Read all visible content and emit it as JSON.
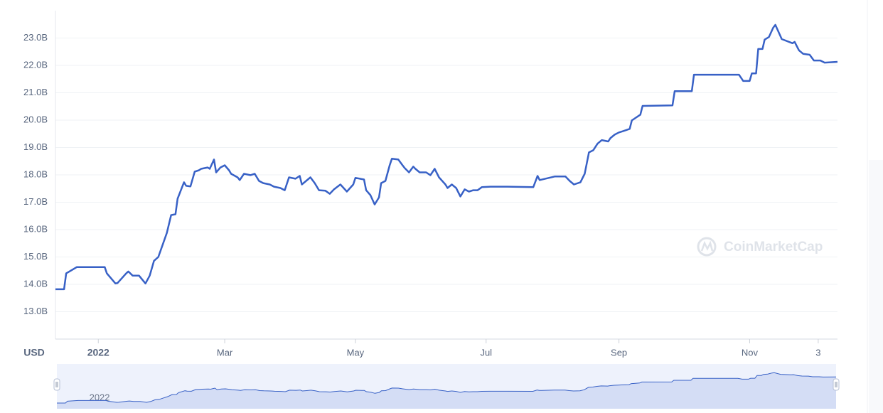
{
  "chart_data": {
    "type": "line",
    "currency": "USD",
    "watermark": "CoinMarketCap",
    "color": "#3861c6",
    "x": [
      -20,
      -16,
      -15,
      -10,
      3,
      4,
      8,
      9,
      13,
      14,
      16,
      19,
      22,
      24,
      26,
      28,
      30,
      32,
      34,
      36,
      37,
      40,
      41,
      43,
      45,
      47,
      48,
      51,
      52,
      54,
      55,
      57,
      59,
      61,
      62,
      65,
      66,
      68,
      71,
      73,
      75,
      77,
      80,
      82,
      85,
      87,
      89,
      92,
      94,
      95,
      97,
      99,
      101,
      103,
      106,
      108,
      110,
      113,
      116,
      119,
      120,
      124,
      125,
      127,
      129,
      131,
      132,
      134,
      136,
      137,
      140,
      142,
      143,
      145,
      147,
      148,
      150,
      153,
      155,
      157,
      159,
      162,
      163,
      165,
      167,
      169,
      171,
      173,
      175,
      177,
      179,
      183,
      191,
      203,
      205,
      206,
      213,
      218,
      220,
      222,
      225,
      227,
      229,
      231,
      233,
      235,
      238,
      239,
      241,
      243,
      245,
      248,
      249,
      253,
      254,
      268,
      269,
      277,
      278,
      299,
      301,
      304,
      305,
      307,
      308,
      310,
      311,
      313,
      315,
      316,
      319,
      324,
      325,
      327,
      329,
      332,
      334,
      337,
      339,
      345
    ],
    "values": [
      13.82,
      13.82,
      14.4,
      14.63,
      14.63,
      14.4,
      14.03,
      14.05,
      14.4,
      14.47,
      14.32,
      14.32,
      14.03,
      14.32,
      14.86,
      15.0,
      15.44,
      15.88,
      16.53,
      16.56,
      17.13,
      17.73,
      17.6,
      17.58,
      18.12,
      18.17,
      18.22,
      18.27,
      18.22,
      18.56,
      18.09,
      18.27,
      18.35,
      18.17,
      18.04,
      17.91,
      17.81,
      18.04,
      17.99,
      18.04,
      17.78,
      17.7,
      17.65,
      17.57,
      17.52,
      17.44,
      17.91,
      17.86,
      17.96,
      17.65,
      17.78,
      17.91,
      17.7,
      17.44,
      17.42,
      17.31,
      17.47,
      17.65,
      17.39,
      17.65,
      17.89,
      17.83,
      17.44,
      17.26,
      16.92,
      17.18,
      17.7,
      17.78,
      18.35,
      18.59,
      18.56,
      18.35,
      18.25,
      18.09,
      18.3,
      18.22,
      18.09,
      18.09,
      17.99,
      18.22,
      17.91,
      17.65,
      17.52,
      17.65,
      17.52,
      17.21,
      17.47,
      17.39,
      17.44,
      17.44,
      17.55,
      17.57,
      17.57,
      17.55,
      17.96,
      17.81,
      17.94,
      17.94,
      17.78,
      17.65,
      17.73,
      18.04,
      18.82,
      18.9,
      19.14,
      19.27,
      19.22,
      19.34,
      19.47,
      19.55,
      19.6,
      19.68,
      19.99,
      20.2,
      20.52,
      20.54,
      21.06,
      21.06,
      21.66,
      21.66,
      21.43,
      21.43,
      21.71,
      21.71,
      22.6,
      22.6,
      22.94,
      23.04,
      23.38,
      23.48,
      22.96,
      22.81,
      22.86,
      22.55,
      22.42,
      22.39,
      22.18,
      22.18,
      22.1,
      22.13
    ],
    "xlim": [
      -20,
      345
    ],
    "xticks": [
      {
        "value": 0,
        "label": "2022"
      },
      {
        "value": 59,
        "label": "Mar"
      },
      {
        "value": 120,
        "label": "May"
      },
      {
        "value": 181,
        "label": "Jul"
      },
      {
        "value": 243,
        "label": "Sep"
      },
      {
        "value": 304,
        "label": "Nov"
      },
      {
        "value": 336,
        "label": "3"
      }
    ],
    "ylim": [
      12,
      24
    ],
    "yticks": [
      {
        "value": 13,
        "label": "13.0B"
      },
      {
        "value": 14,
        "label": "14.0B"
      },
      {
        "value": 15,
        "label": "15.0B"
      },
      {
        "value": 16,
        "label": "16.0B"
      },
      {
        "value": 17,
        "label": "17.0B"
      },
      {
        "value": 18,
        "label": "18.0B"
      },
      {
        "value": 19,
        "label": "19.0B"
      },
      {
        "value": 20,
        "label": "20.0B"
      },
      {
        "value": 21,
        "label": "21.0B"
      },
      {
        "value": 22,
        "label": "22.0B"
      },
      {
        "value": 23,
        "label": "23.0B"
      }
    ],
    "grid": true
  }
}
